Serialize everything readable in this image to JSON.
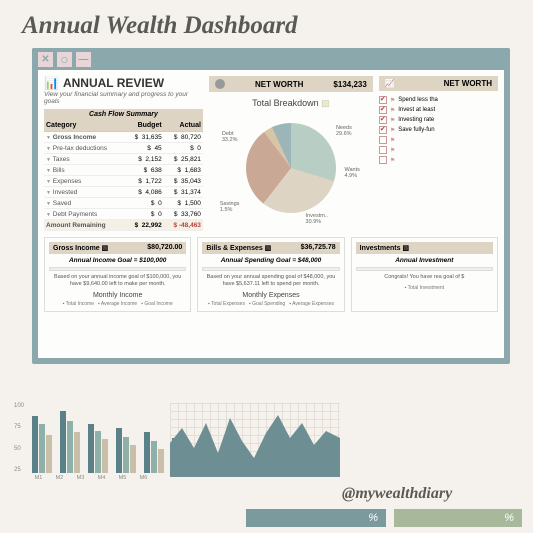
{
  "page_title": "Annual Wealth Dashboard",
  "handle": "@mywealthdiary",
  "window": {
    "review_title": "ANNUAL REVIEW",
    "review_subtitle": "View your financial summary and progress to your goals",
    "net_worth": {
      "label": "NET WORTH",
      "value": "$134,233",
      "label2": "NET WORTH"
    }
  },
  "cash_flow": {
    "header": "Cash Flow Summary",
    "columns": [
      "Category",
      "Budget",
      "Actual"
    ],
    "rows": [
      {
        "cat": "Gross Income",
        "budget": "31,635",
        "actual": "80,720",
        "b": true
      },
      {
        "cat": "Pre-tax deductions",
        "budget": "45",
        "actual": "0"
      },
      {
        "cat": "Taxes",
        "budget": "2,152",
        "actual": "25,821"
      },
      {
        "cat": "Bills",
        "budget": "638",
        "actual": "1,683"
      },
      {
        "cat": "Expenses",
        "budget": "1,722",
        "actual": "35,043"
      },
      {
        "cat": "Invested",
        "budget": "4,086",
        "actual": "31,374"
      },
      {
        "cat": "Saved",
        "budget": "0",
        "actual": "1,500"
      },
      {
        "cat": "Debt Payments",
        "budget": "0",
        "actual": "33,760"
      }
    ],
    "remaining": {
      "label": "Amount Remaining",
      "budget": "22,992",
      "actual": "-48,463"
    }
  },
  "breakdown": {
    "title": "Total Breakdown",
    "slices": [
      {
        "label": "Needs",
        "pct": "29.6%",
        "color": "#b8cdc3"
      },
      {
        "label": "Investm...",
        "pct": "30.9%",
        "color": "#ddd4c3"
      },
      {
        "label": "Debt",
        "pct": "33.2%",
        "color": "#c9a896"
      },
      {
        "label": "Savings",
        "pct": "1.5%",
        "color": "#d8c5a8"
      },
      {
        "label": "Wants",
        "pct": "4.9%",
        "color": "#9cb5b8"
      }
    ]
  },
  "goals": [
    {
      "text": "Spend less tha",
      "checked": true
    },
    {
      "text": "Invest at least",
      "checked": true
    },
    {
      "text": "Investing rate",
      "checked": true
    },
    {
      "text": "Save fully-fun",
      "checked": true
    },
    {
      "text": "",
      "checked": false
    },
    {
      "text": "",
      "checked": false
    },
    {
      "text": "",
      "checked": false
    }
  ],
  "cards": {
    "income": {
      "title": "Gross Income",
      "value": "$80,720.00",
      "goal": "Annual Income Goal = $100,000",
      "note": "Based on your annual income goal of $100,000, you have $9,640.00 left to make per month.",
      "chart_title": "Monthly Income",
      "legend": [
        "Total Income",
        "Average Income",
        "Goal Income"
      ]
    },
    "bills": {
      "title": "Bills & Expenses",
      "value": "$36,725.78",
      "goal": "Annual Spending Goal = $48,000",
      "note": "Based on your annual spending goal of $48,000, you have $5,637.11 left to spend per month.",
      "chart_title": "Monthly Expenses",
      "legend": [
        "Total Expenses",
        "Goal Spending",
        "Average Expenses"
      ]
    },
    "invest": {
      "title": "Investments",
      "value": "",
      "goal": "Annual Investment",
      "note": "Congrats! You have rea goal of $",
      "chart_title": "",
      "legend": [
        "Total Investment"
      ]
    }
  },
  "bar_chart": {
    "y_ticks": [
      "100",
      "75",
      "50",
      "25"
    ],
    "x_labels": [
      "M1",
      "M2",
      "M3",
      "M4",
      "M5",
      "M6"
    ],
    "series_colors": [
      "#5a8088",
      "#8fb0a8",
      "#c9bfa8"
    ],
    "data": [
      [
        82,
        70,
        55
      ],
      [
        88,
        75,
        58
      ],
      [
        70,
        60,
        48
      ],
      [
        64,
        52,
        40
      ],
      [
        58,
        46,
        35
      ],
      [
        50,
        42,
        30
      ]
    ]
  },
  "area_chart": {
    "color": "#6d8e92"
  },
  "pct_bars": [
    {
      "width": 140,
      "color": "#7a9a9e",
      "label": "%"
    },
    {
      "width": 128,
      "color": "#a8b89a",
      "label": "%"
    }
  ]
}
